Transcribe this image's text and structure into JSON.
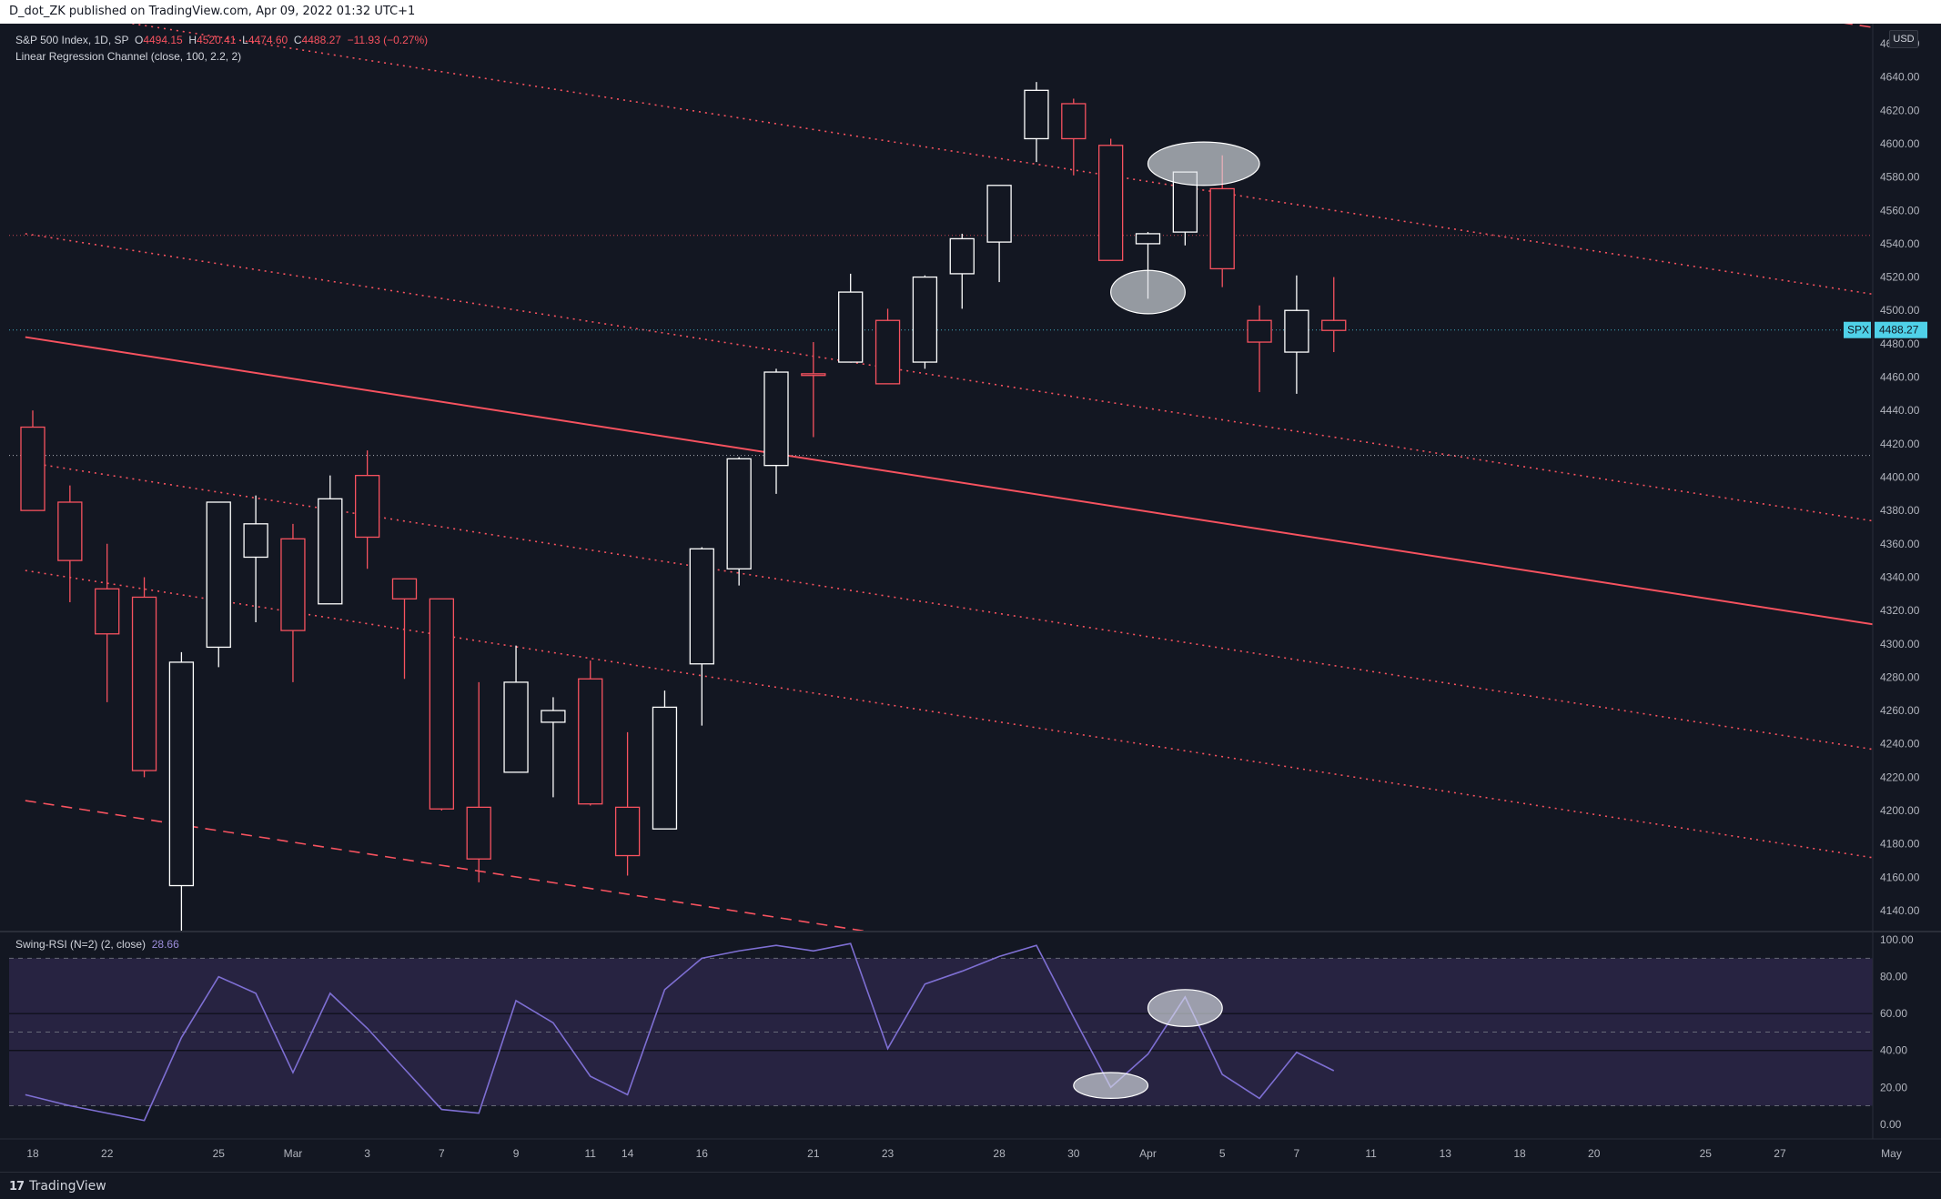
{
  "header": {
    "published_by": "D_dot_ZK published on TradingView.com, Apr 09, 2022 01:32 UTC+1"
  },
  "legend": {
    "symbol": "S&P 500 Index, 1D, SP",
    "open_label": "O",
    "open": "4494.15",
    "high_label": "H",
    "high": "4520.41",
    "low_label": "L",
    "low": "4474.60",
    "close_label": "C",
    "close": "4488.27",
    "change": "−11.93 (−0.27%)",
    "indicator": "Linear Regression Channel (close, 100, 2.2, 2)"
  },
  "rsi_legend": {
    "name": "Swing-RSI (N=2) (2, close)",
    "value": "28.66"
  },
  "price_scale": {
    "currency": "USD",
    "symbol_tag": "SPX",
    "last_price": "4488.27"
  },
  "footer": {
    "brand": "TradingView"
  },
  "colors": {
    "background": "#131722",
    "up": "#ffffff",
    "down": "#f7525f",
    "rsi_line": "#7e6fd3",
    "rsi_band": "#2a2545",
    "spx_tag": "#4fd1e8"
  },
  "chart_data": [
    {
      "type": "candlestick",
      "title": "S&P 500 Index, 1D",
      "ylim": [
        4128,
        4672
      ],
      "y_ticks": [
        "4660.00",
        "4640.00",
        "4620.00",
        "4600.00",
        "4580.00",
        "4560.00",
        "4540.00",
        "4520.00",
        "4500.00",
        "4480.00",
        "4460.00",
        "4440.00",
        "4420.00",
        "4400.00",
        "4380.00",
        "4360.00",
        "4340.00",
        "4320.00",
        "4300.00",
        "4280.00",
        "4260.00",
        "4240.00",
        "4220.00",
        "4200.00",
        "4180.00",
        "4160.00",
        "4140.00"
      ],
      "x_ticks": [
        {
          "label": "18",
          "i": 0
        },
        {
          "label": "22",
          "i": 2
        },
        {
          "label": "25",
          "i": 5
        },
        {
          "label": "Mar",
          "i": 7
        },
        {
          "label": "3",
          "i": 9
        },
        {
          "label": "7",
          "i": 11
        },
        {
          "label": "9",
          "i": 13
        },
        {
          "label": "11",
          "i": 15
        },
        {
          "label": "14",
          "i": 16
        },
        {
          "label": "16",
          "i": 18
        },
        {
          "label": "21",
          "i": 21
        },
        {
          "label": "23",
          "i": 23
        },
        {
          "label": "28",
          "i": 26
        },
        {
          "label": "30",
          "i": 28
        },
        {
          "label": "Apr",
          "i": 30
        },
        {
          "label": "5",
          "i": 32
        },
        {
          "label": "7",
          "i": 34
        },
        {
          "label": "11",
          "i": 36
        },
        {
          "label": "13",
          "i": 38
        },
        {
          "label": "18",
          "i": 40
        },
        {
          "label": "20",
          "i": 42
        },
        {
          "label": "25",
          "i": 45
        },
        {
          "label": "27",
          "i": 47
        },
        {
          "label": "May",
          "i": 50
        }
      ],
      "candles": [
        {
          "o": 4430,
          "h": 4440,
          "l": 4380,
          "c": 4380
        },
        {
          "o": 4385,
          "h": 4395,
          "l": 4325,
          "c": 4350
        },
        {
          "o": 4333,
          "h": 4360,
          "l": 4265,
          "c": 4306
        },
        {
          "o": 4328,
          "h": 4340,
          "l": 4220,
          "c": 4224
        },
        {
          "o": 4155,
          "h": 4295,
          "l": 4115,
          "c": 4289
        },
        {
          "o": 4298,
          "h": 4385,
          "l": 4286,
          "c": 4385
        },
        {
          "o": 4352,
          "h": 4389,
          "l": 4313,
          "c": 4372
        },
        {
          "o": 4363,
          "h": 4372,
          "l": 4277,
          "c": 4308
        },
        {
          "o": 4324,
          "h": 4401,
          "l": 4324,
          "c": 4387
        },
        {
          "o": 4401,
          "h": 4416,
          "l": 4345,
          "c": 4364
        },
        {
          "o": 4339,
          "h": 4339,
          "l": 4279,
          "c": 4327
        },
        {
          "o": 4327,
          "h": 4327,
          "l": 4200,
          "c": 4201
        },
        {
          "o": 4202,
          "h": 4277,
          "l": 4157,
          "c": 4171
        },
        {
          "o": 4223,
          "h": 4299,
          "l": 4223,
          "c": 4277
        },
        {
          "o": 4253,
          "h": 4268,
          "l": 4208,
          "c": 4260
        },
        {
          "o": 4279,
          "h": 4290,
          "l": 4203,
          "c": 4204
        },
        {
          "o": 4202,
          "h": 4247,
          "l": 4161,
          "c": 4173
        },
        {
          "o": 4189,
          "h": 4272,
          "l": 4189,
          "c": 4262
        },
        {
          "o": 4288,
          "h": 4358,
          "l": 4251,
          "c": 4357
        },
        {
          "o": 4345,
          "h": 4412,
          "l": 4335,
          "c": 4411
        },
        {
          "o": 4407,
          "h": 4465,
          "l": 4390,
          "c": 4463
        },
        {
          "o": 4462,
          "h": 4481,
          "l": 4424,
          "c": 4461
        },
        {
          "o": 4469,
          "h": 4522,
          "l": 4469,
          "c": 4511
        },
        {
          "o": 4494,
          "h": 4501,
          "l": 4456,
          "c": 4456
        },
        {
          "o": 4469,
          "h": 4521,
          "l": 4465,
          "c": 4520
        },
        {
          "o": 4522,
          "h": 4546,
          "l": 4501,
          "c": 4543
        },
        {
          "o": 4541,
          "h": 4575,
          "l": 4517,
          "c": 4575
        },
        {
          "o": 4603,
          "h": 4637,
          "l": 4589,
          "c": 4632
        },
        {
          "o": 4624,
          "h": 4627,
          "l": 4581,
          "c": 4603
        },
        {
          "o": 4599,
          "h": 4603,
          "l": 4530,
          "c": 4530
        },
        {
          "o": 4540,
          "h": 4547,
          "l": 4507,
          "c": 4546
        },
        {
          "o": 4547,
          "h": 4583,
          "l": 4539,
          "c": 4583
        },
        {
          "o": 4573,
          "h": 4593,
          "l": 4514,
          "c": 4525
        },
        {
          "o": 4494,
          "h": 4503,
          "l": 4451,
          "c": 4481
        },
        {
          "o": 4475,
          "h": 4521,
          "l": 4450,
          "c": 4500
        },
        {
          "o": 4494,
          "h": 4520,
          "l": 4475,
          "c": 4488
        }
      ],
      "horizontal_lines": [
        {
          "y": 4545,
          "style": "dotted",
          "color": "#f7525f"
        },
        {
          "y": 4488.27,
          "style": "dotted",
          "color": "#4fd1e8"
        },
        {
          "y": 4413,
          "style": "dotted",
          "color": "#d1d4dc"
        }
      ],
      "regression_channel": {
        "x_range": [
          -0.2,
          50
        ],
        "center": [
          4484,
          4310
        ],
        "offsets": [
          {
            "dy": 0,
            "style": "solid"
          },
          {
            "dy": 62,
            "style": "dotted"
          },
          {
            "dy": 198,
            "style": "dotted"
          },
          {
            "dy": -75,
            "style": "dotted"
          },
          {
            "dy": -140,
            "style": "dotted"
          },
          {
            "dy": 358,
            "style": "dashed"
          },
          {
            "dy": -278,
            "style": "dashed"
          }
        ]
      },
      "annotations": [
        {
          "shape": "ellipse",
          "cx": 31.5,
          "cy": 4588,
          "rx": 1.5,
          "ry": 13
        },
        {
          "shape": "ellipse",
          "cx": 30,
          "cy": 4511,
          "rx": 1,
          "ry": 13
        }
      ]
    },
    {
      "type": "line",
      "title": "Swing-RSI (N=2) (2, close)",
      "ylim": [
        -8,
        104
      ],
      "y_ticks": [
        "100.00",
        "80.00",
        "60.00",
        "40.00",
        "20.00",
        "0.00"
      ],
      "bands": {
        "upper": 90,
        "lower": 10,
        "mid": 50,
        "upper_inner": 60,
        "lower_inner": 40
      },
      "series": [
        {
          "values": [
            {
              "i": -0.2,
              "v": 16
            },
            {
              "i": 1,
              "v": 10
            },
            {
              "i": 2,
              "v": 6
            },
            {
              "i": 3,
              "v": 2
            },
            {
              "i": 4,
              "v": 47
            },
            {
              "i": 5,
              "v": 80
            },
            {
              "i": 6,
              "v": 71
            },
            {
              "i": 7,
              "v": 28
            },
            {
              "i": 8,
              "v": 71
            },
            {
              "i": 9,
              "v": 52
            },
            {
              "i": 10,
              "v": 30
            },
            {
              "i": 11,
              "v": 8
            },
            {
              "i": 12,
              "v": 6
            },
            {
              "i": 13,
              "v": 67
            },
            {
              "i": 14,
              "v": 55
            },
            {
              "i": 15,
              "v": 26
            },
            {
              "i": 16,
              "v": 16
            },
            {
              "i": 17,
              "v": 73
            },
            {
              "i": 18,
              "v": 90
            },
            {
              "i": 19,
              "v": 94
            },
            {
              "i": 20,
              "v": 97
            },
            {
              "i": 21,
              "v": 94
            },
            {
              "i": 22,
              "v": 98
            },
            {
              "i": 23,
              "v": 41
            },
            {
              "i": 24,
              "v": 76
            },
            {
              "i": 25,
              "v": 83
            },
            {
              "i": 26,
              "v": 91
            },
            {
              "i": 27,
              "v": 97
            },
            {
              "i": 28,
              "v": 58
            },
            {
              "i": 29,
              "v": 20
            },
            {
              "i": 30,
              "v": 38
            },
            {
              "i": 31,
              "v": 69
            },
            {
              "i": 32,
              "v": 27
            },
            {
              "i": 33,
              "v": 14
            },
            {
              "i": 34,
              "v": 39
            },
            {
              "i": 35,
              "v": 29
            }
          ]
        }
      ],
      "annotations": [
        {
          "shape": "ellipse",
          "cx": 29,
          "cy": 21,
          "rx": 1,
          "ry": 7
        },
        {
          "shape": "ellipse",
          "cx": 31,
          "cy": 63,
          "rx": 1,
          "ry": 10
        }
      ]
    }
  ]
}
